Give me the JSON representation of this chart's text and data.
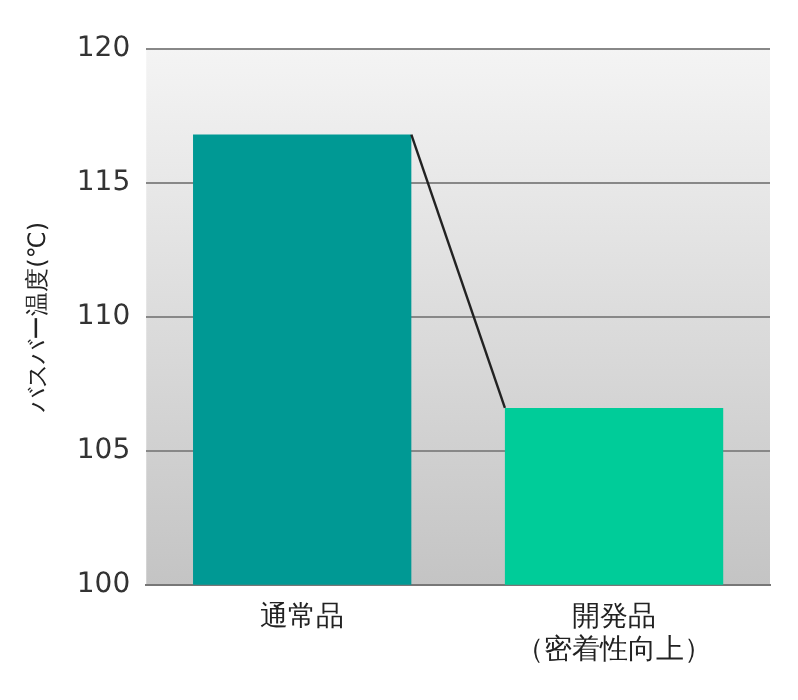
{
  "chart_data": {
    "type": "bar",
    "ylabel": "バスバー温度(℃)",
    "categories": [
      "通常品",
      "開発品（密着性向上）"
    ],
    "values": [
      116.8,
      106.6
    ],
    "colors": [
      "#009994",
      "#00cc99"
    ],
    "ylim": [
      100,
      120
    ],
    "yticks": [
      100,
      105,
      110,
      115,
      120
    ],
    "grid": "y"
  }
}
